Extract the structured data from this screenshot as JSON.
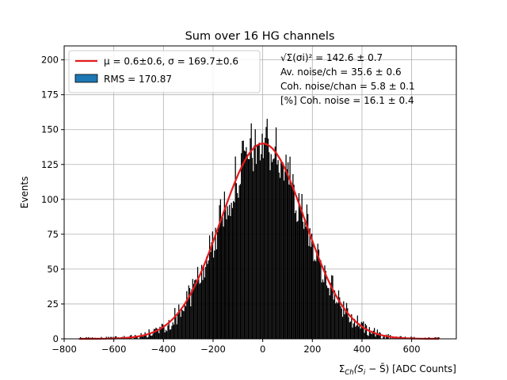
{
  "chart_data": {
    "type": "bar",
    "title": "Sum over 16 HG channels",
    "xlabel": "ΣCh(Si − S̄) [ADC Counts]",
    "xlabel_main": "Σ",
    "xlabel_sub": "Ch",
    "xlabel_rest": "(S",
    "xlabel_sub2": "i",
    "xlabel_tail": " − S̄) [ADC Counts]",
    "ylabel": "Events",
    "xlim": [
      -800,
      780
    ],
    "ylim": [
      0,
      210
    ],
    "x_ticks": [
      -800,
      -600,
      -400,
      -200,
      0,
      200,
      400,
      600
    ],
    "y_ticks": [
      0,
      25,
      50,
      75,
      100,
      125,
      150,
      175,
      200
    ],
    "grid": true,
    "legend_position": "top-left",
    "legend": [
      {
        "label": "μ = 0.6±0.6, σ = 169.7±0.6",
        "kind": "line",
        "color": "#e41a1c"
      },
      {
        "label": "RMS = 170.87",
        "kind": "patch",
        "color": "#1f77b4"
      }
    ],
    "histogram": {
      "bin_range": [
        -740,
        710
      ],
      "bin_width": 4,
      "peak_events": 140,
      "fill_color": "#000000"
    },
    "fit": {
      "name": "Gaussian fit",
      "mu": 0.6,
      "sigma": 169.7,
      "amplitude": 140,
      "x_range": [
        -740,
        710
      ],
      "color": "#e41a1c"
    },
    "annotations": [
      {
        "id": "sqrt_sum",
        "text": "√Σ(σi)² = 142.6 ± 0.7"
      },
      {
        "id": "av_noise",
        "text": "Av. noise/ch  = 35.6 ± 0.6"
      },
      {
        "id": "coh_noise_chan",
        "text": "Coh. noise/chan  = 5.8 ± 0.1"
      },
      {
        "id": "coh_noise_pct",
        "text": "[%] Coh. noise  = 16.1 ± 0.4"
      }
    ]
  }
}
